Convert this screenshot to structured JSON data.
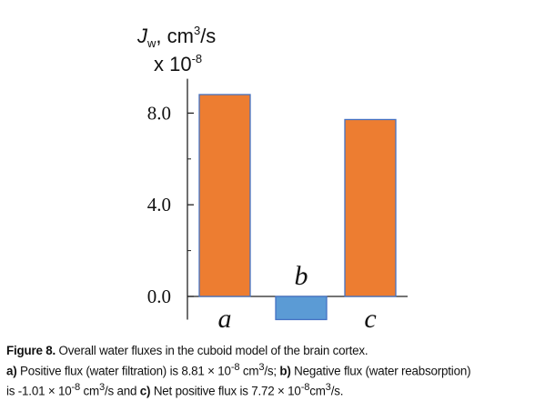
{
  "chart_data": {
    "type": "bar",
    "ylabel": {
      "symbol": "J",
      "subscript": "w",
      "units": ", cm",
      "units_sup": "3",
      "units_tail": "/s",
      "scale_prefix": "x 10",
      "scale_exp": "-8"
    },
    "categories": [
      "a",
      "b",
      "c"
    ],
    "values": [
      8.81,
      -1.01,
      7.72
    ],
    "colors": [
      "#ed7d31",
      "#5b9bd5",
      "#ed7d31"
    ],
    "bar_edge_color": "#4472c4",
    "ylim": [
      -1.01,
      9.5
    ],
    "yticks": [
      0.0,
      4.0,
      8.0
    ],
    "ytick_labels": [
      "0.0",
      "4.0",
      "8.0"
    ],
    "legend": "none",
    "grid": false
  },
  "caption": {
    "label": "Figure 8.",
    "title": " Overall water fluxes in the cuboid model of the brain cortex.",
    "a_label": "a)",
    "a_text": " Positive flux (water filtration) is 8.81 × 10",
    "a_exp": "-8",
    "a_unit": " cm",
    "a_unit_sup": "3",
    "a_unit_tail": "/s;",
    "b_label": " b)",
    "b_text": " Negative flux (water reabsorption)",
    "b_text2": "is -1.01 × 10",
    "b_exp": "-8",
    "b_unit": " cm",
    "b_unit_sup": "3",
    "b_unit_tail": "/s and",
    "c_label": "  c)",
    "c_text": " Net positive flux is 7.72 × 10",
    "c_exp": "-8",
    "c_unit": "cm",
    "c_unit_sup": "3",
    "c_unit_tail": "/s."
  }
}
